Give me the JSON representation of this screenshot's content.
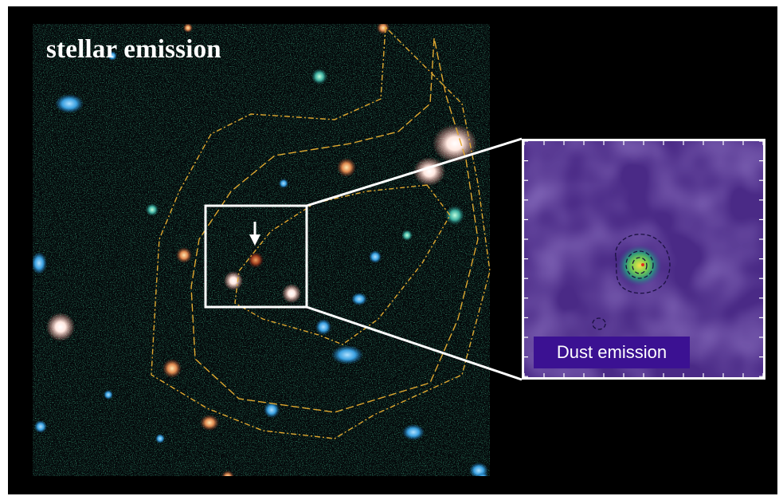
{
  "labels": {
    "stellar": "stellar emission",
    "dust": "Dust emission"
  },
  "colors": {
    "background": "#000000",
    "contour": "#e0a830",
    "box": "#ffffff",
    "dust_label_bg": "#3b1192",
    "inset_bg": "#4a2a86",
    "peak": "#f4e04a"
  }
}
